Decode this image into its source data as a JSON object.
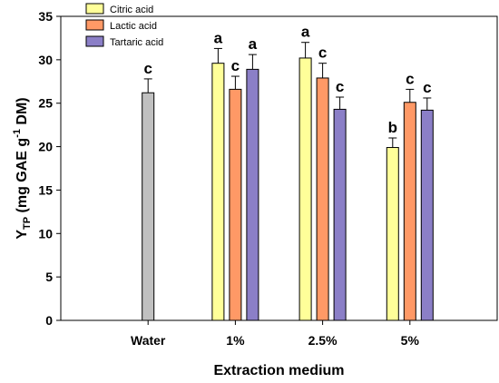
{
  "chart_data": {
    "type": "bar",
    "categories": [
      "Water",
      "1%",
      "2.5%",
      "5%"
    ],
    "series": [
      {
        "name": "",
        "color": "#c0c0c0",
        "values": [
          26.2,
          null,
          null,
          null
        ],
        "errors": [
          1.6,
          null,
          null,
          null
        ],
        "letters": [
          "c",
          null,
          null,
          null
        ]
      },
      {
        "name": "Citric acid",
        "color": "#ffff99",
        "values": [
          null,
          29.6,
          30.2,
          19.9
        ],
        "errors": [
          null,
          1.7,
          1.8,
          1.1
        ],
        "letters": [
          null,
          "a",
          "a",
          "b"
        ]
      },
      {
        "name": "Lactic acid",
        "color": "#ff9966",
        "values": [
          null,
          26.6,
          27.9,
          25.1
        ],
        "errors": [
          null,
          1.5,
          1.7,
          1.5
        ],
        "letters": [
          null,
          "c",
          "c",
          "c"
        ]
      },
      {
        "name": "Tartaric acid",
        "color": "#8b7fc7",
        "values": [
          null,
          28.9,
          24.3,
          24.2
        ],
        "errors": [
          null,
          1.7,
          1.4,
          1.4
        ],
        "letters": [
          null,
          "a",
          "c",
          "c"
        ]
      }
    ],
    "xlabel": "Extraction medium",
    "ylabel": {
      "main": "Y",
      "sub": "TP",
      "unit_pre": " (mg GAE g",
      "sup": "-1",
      "unit_post": " DM)"
    },
    "ylim": [
      0,
      35
    ],
    "yticks": [
      0,
      5,
      10,
      15,
      20,
      25,
      30,
      35
    ],
    "grid": false,
    "legend_position": "top-left"
  }
}
